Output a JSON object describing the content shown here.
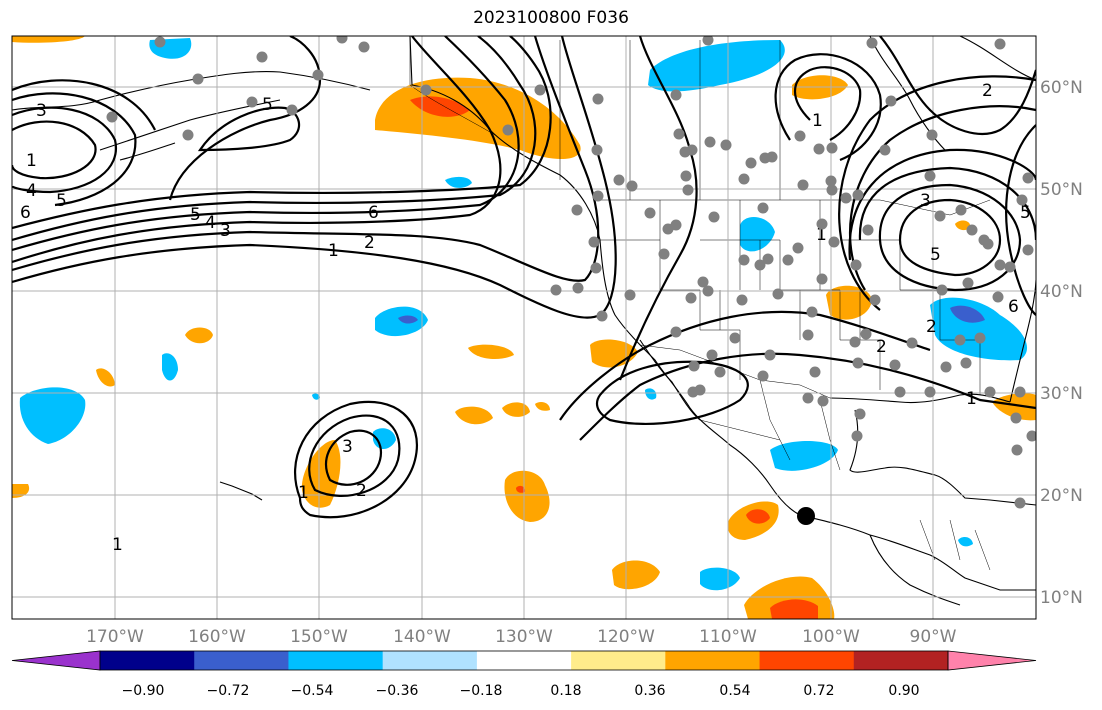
{
  "title": "2023100800 F036",
  "lon_labels": [
    "170°W",
    "160°W",
    "150°W",
    "140°W",
    "130°W",
    "120°W",
    "110°W",
    "100°W",
    "90°W"
  ],
  "lat_labels": [
    "60°N",
    "50°N",
    "40°N",
    "30°N",
    "20°N",
    "10°N"
  ],
  "colorbar": {
    "tick_labels": [
      "−0.90",
      "−0.72",
      "−0.54",
      "−0.36",
      "−0.18",
      "0.18",
      "0.36",
      "0.54",
      "0.72",
      "0.90"
    ],
    "bin_colors": [
      "#9a32cd",
      "#00008b",
      "#3a5fcd",
      "#00bfff",
      "#b0e2ff",
      "#ffffff",
      "#ffec8b",
      "#ffa500",
      "#ff4500",
      "#b22222",
      "#ff82ab"
    ]
  },
  "contour_labels": [
    {
      "text": "3"
    },
    {
      "text": "1"
    },
    {
      "text": "4"
    },
    {
      "text": "5"
    },
    {
      "text": "6"
    },
    {
      "text": "5"
    },
    {
      "text": "5"
    },
    {
      "text": "5"
    },
    {
      "text": "4"
    },
    {
      "text": "3"
    },
    {
      "text": "6"
    },
    {
      "text": "2"
    },
    {
      "text": "1"
    },
    {
      "text": "1"
    },
    {
      "text": "2"
    },
    {
      "text": "1"
    },
    {
      "text": "2"
    },
    {
      "text": "3"
    },
    {
      "text": "5"
    },
    {
      "text": "6"
    },
    {
      "text": "2"
    },
    {
      "text": "1"
    },
    {
      "text": "3"
    },
    {
      "text": "2"
    },
    {
      "text": "1"
    },
    {
      "text": "1"
    }
  ],
  "marker": {
    "color": "#000000"
  },
  "station_color": "#808080"
}
